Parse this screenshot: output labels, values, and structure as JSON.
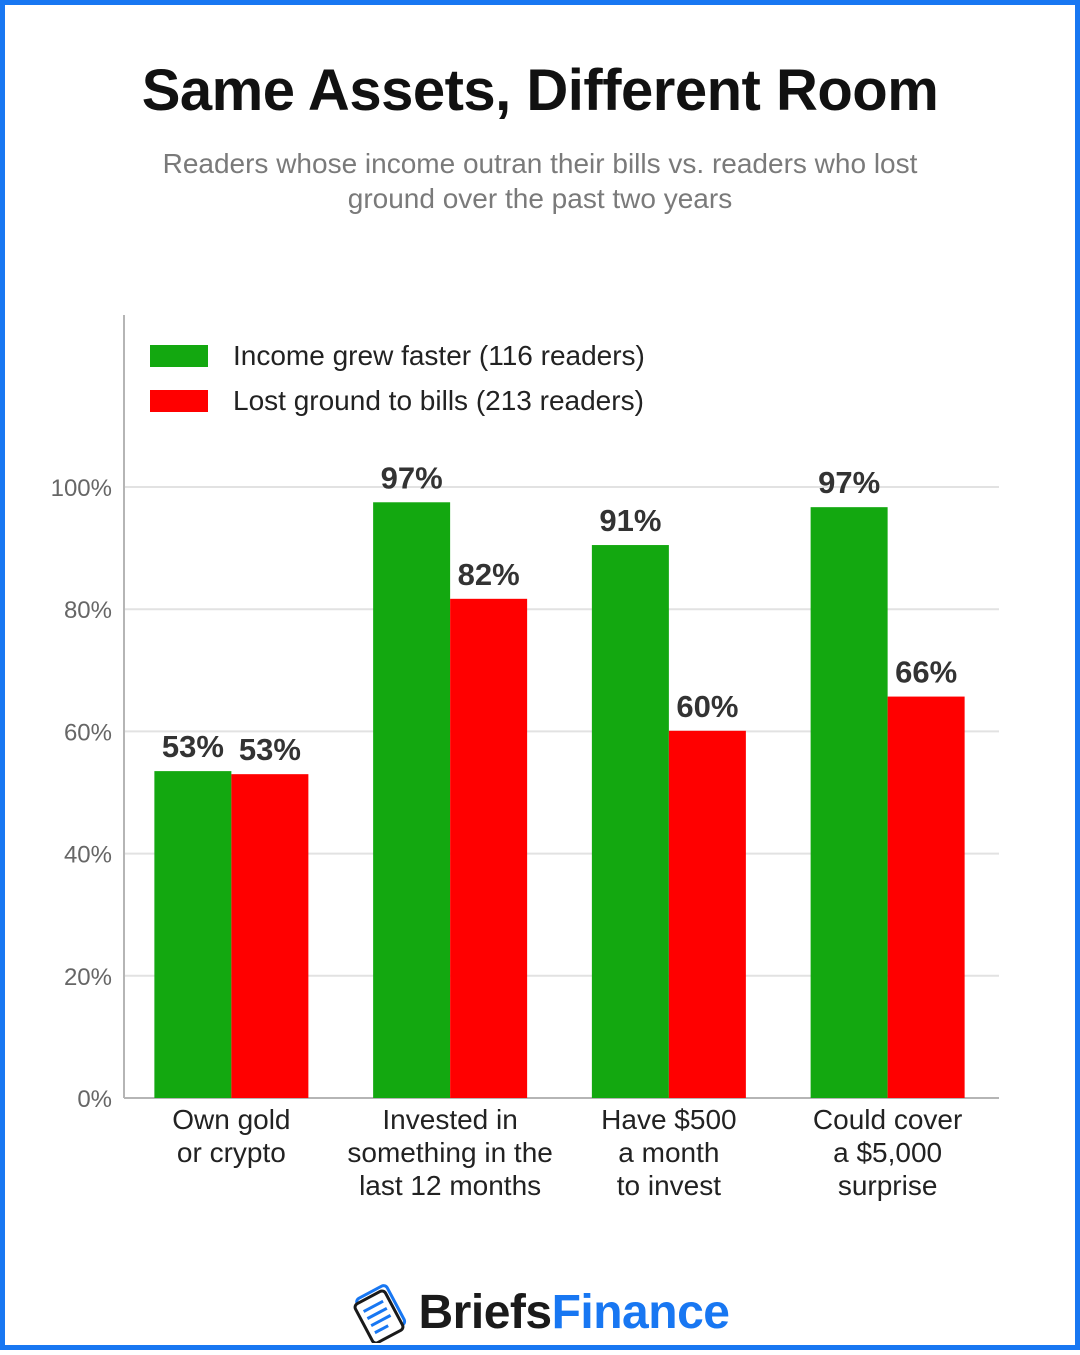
{
  "title": "Same Assets, Different Room",
  "subtitle": "Readers whose income outran their bills vs. readers who lost ground over the past two years",
  "brand": {
    "part1": "Briefs",
    "part2": "Finance",
    "logo_icon": "document-stack-logo-icon"
  },
  "colors": {
    "border": "#1877f2",
    "series1": "#13a810",
    "series2": "#ff0000",
    "grid": "#e2e2e2",
    "axis": "#b5b5b5"
  },
  "chart_data": {
    "type": "bar",
    "categories": [
      [
        "Own gold",
        "or crypto"
      ],
      [
        "Invested in",
        "something in the",
        "last 12 months"
      ],
      [
        "Have $500",
        "a month",
        "to invest"
      ],
      [
        "Could cover",
        "a $5,000",
        "surprise"
      ]
    ],
    "series": [
      {
        "name": "Income grew faster (116 readers)",
        "values": [
          53.5,
          97.5,
          90.5,
          96.7
        ],
        "labels": [
          "53%",
          "97%",
          "91%",
          "97%"
        ]
      },
      {
        "name": "Lost ground to bills (213 readers)",
        "values": [
          53.0,
          81.7,
          60.1,
          65.7
        ],
        "labels": [
          "53%",
          "82%",
          "60%",
          "66%"
        ]
      }
    ],
    "ylim": [
      0,
      100
    ],
    "yticks": [
      0,
      20,
      40,
      60,
      80,
      100
    ],
    "ytick_labels": [
      "0%",
      "20%",
      "40%",
      "60%",
      "80%",
      "100%"
    ],
    "grid": true,
    "legend_position": "top-left"
  }
}
